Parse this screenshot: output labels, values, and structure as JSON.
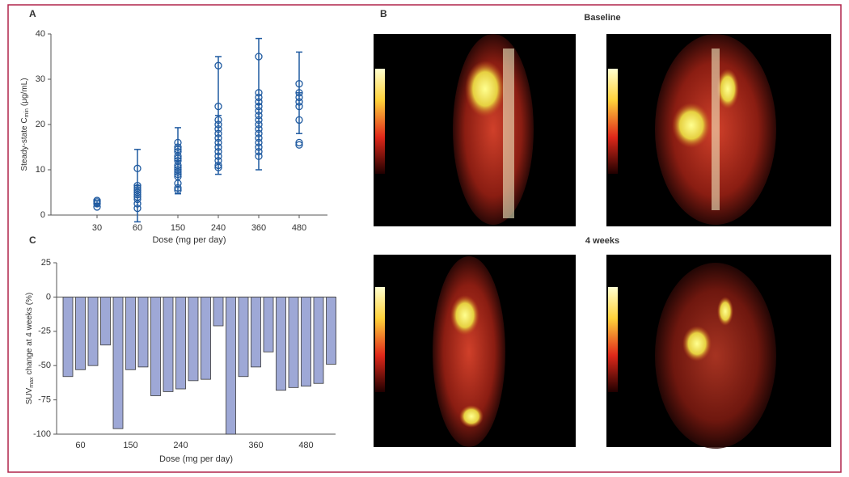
{
  "panels": {
    "a": "A",
    "b": "B",
    "c": "C",
    "baseline": "Baseline",
    "four_weeks": "4 weeks"
  },
  "chart_data": [
    {
      "type": "scatter",
      "color": "#1f5aa0",
      "y_label": [
        "Steady-state C",
        "min",
        "(μg/mL)"
      ],
      "x_label": "Dose (mg per day)",
      "categories": [
        30,
        60,
        150,
        240,
        360,
        480
      ],
      "values": [
        [
          3.2,
          2.9,
          2.5,
          1.8
        ],
        [
          10.3,
          6.5,
          6,
          5.5,
          5,
          4.5,
          4,
          3.5,
          2.5,
          1.5
        ],
        [
          16,
          15,
          14.5,
          14,
          13,
          12.5,
          12,
          11,
          10.5,
          10,
          9.5,
          9,
          8.5,
          7,
          6,
          5.5
        ],
        [
          33,
          24,
          21,
          20,
          19,
          18,
          17,
          16,
          15,
          14,
          13,
          12,
          11,
          10.5
        ],
        [
          35,
          27,
          26,
          25,
          24,
          23,
          22,
          21,
          20,
          19,
          18,
          17,
          16,
          15,
          14,
          13
        ],
        [
          29,
          27,
          26,
          25,
          24,
          21,
          16,
          15.5
        ]
      ],
      "mean": [
        2.6,
        6.5,
        12,
        22,
        24.5,
        27
      ],
      "sd": [
        0.6,
        8,
        7.3,
        13,
        14.5,
        9
      ],
      "ylim": [
        0,
        40
      ],
      "yticks": [
        0,
        10,
        20,
        30,
        40
      ]
    },
    {
      "type": "bar",
      "color": "#9ea8d6",
      "edge_color": "#3a3a3a",
      "y_label": [
        "SUV",
        "max",
        "change at 4 weeks (%)"
      ],
      "x_label": "Dose (mg per day)",
      "categories": [
        null,
        60,
        null,
        null,
        null,
        150,
        null,
        null,
        null,
        240,
        null,
        null,
        null,
        null,
        null,
        360,
        null,
        null,
        null,
        480,
        null,
        null
      ],
      "values": [
        -58,
        -53,
        -50,
        -35,
        -96,
        -53,
        -51,
        -72,
        -69,
        -67,
        -61,
        -60,
        -21,
        -100,
        -58,
        -51,
        -40,
        -68,
        -66,
        -65,
        -63,
        -49
      ],
      "ylim": [
        -100,
        25
      ],
      "yticks": [
        25,
        0,
        -25,
        -50,
        -75,
        -100
      ]
    }
  ]
}
